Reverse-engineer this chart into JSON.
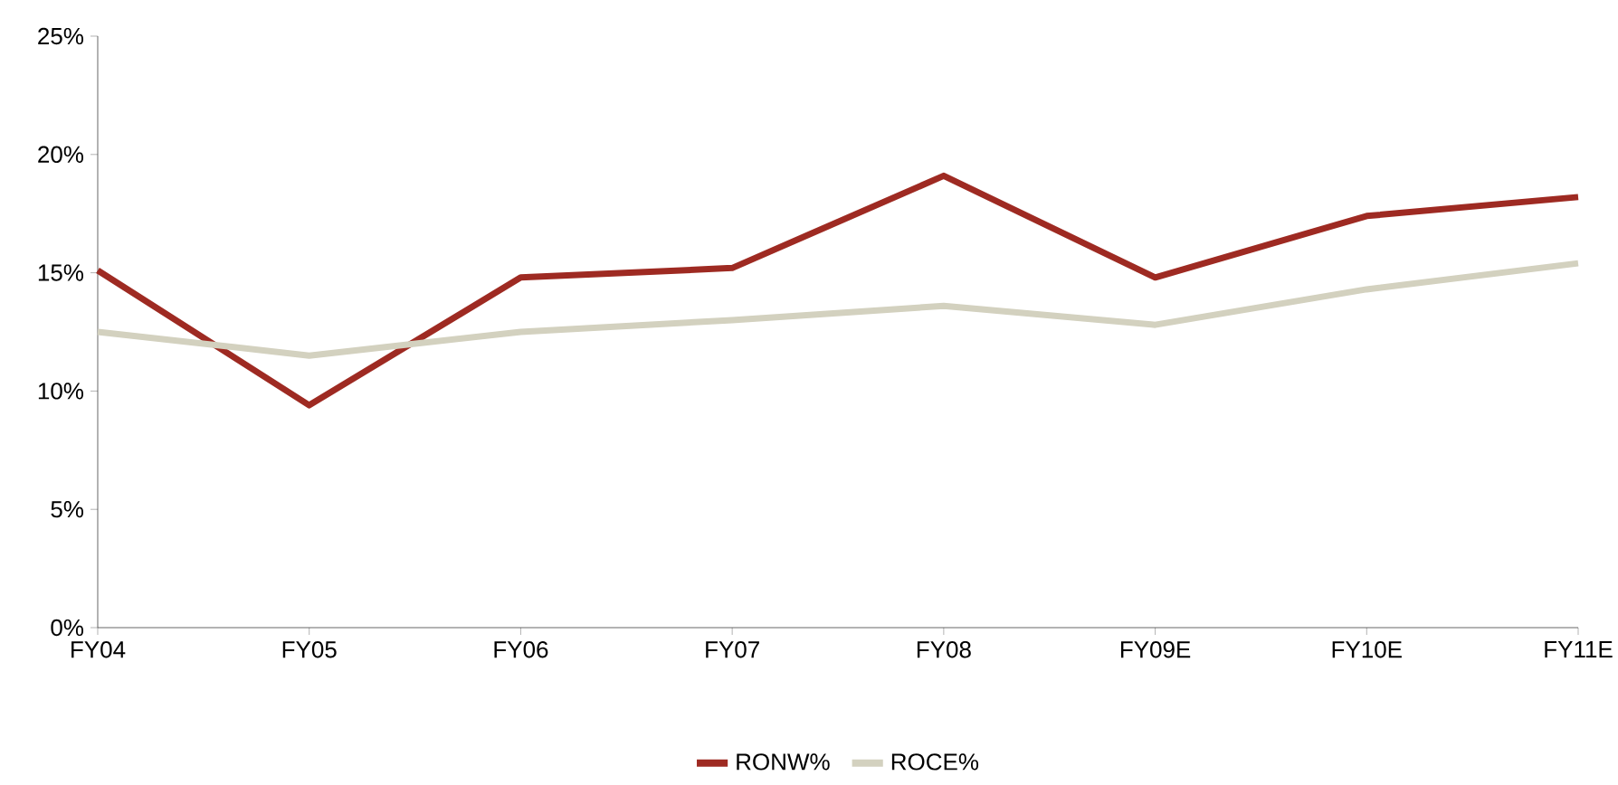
{
  "chart_data": {
    "type": "line",
    "categories": [
      "FY04",
      "FY05",
      "FY06",
      "FY07",
      "FY08",
      "FY09E",
      "FY10E",
      "FY11E"
    ],
    "series": [
      {
        "name": "RONW%",
        "color": "#9e2a22",
        "values": [
          15.1,
          9.4,
          14.8,
          15.2,
          19.1,
          14.8,
          17.4,
          18.2
        ]
      },
      {
        "name": "ROCE%",
        "color": "#d3d1bf",
        "values": [
          12.5,
          11.5,
          12.5,
          13.0,
          13.6,
          12.8,
          14.3,
          15.4
        ]
      }
    ],
    "ylim": [
      0,
      25
    ],
    "yticks": [
      {
        "value": 0,
        "label": "0%"
      },
      {
        "value": 5,
        "label": "5%"
      },
      {
        "value": 10,
        "label": "10%"
      },
      {
        "value": 15,
        "label": "15%"
      },
      {
        "value": 20,
        "label": "20%"
      },
      {
        "value": 25,
        "label": "25%"
      }
    ],
    "grid": false,
    "legend": "bottom",
    "marker": "none",
    "line_style": "solid"
  }
}
